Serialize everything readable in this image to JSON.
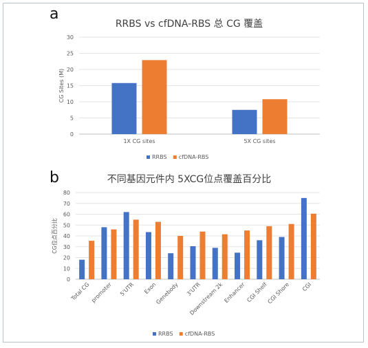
{
  "panels": [
    {
      "letter": "a"
    },
    {
      "letter": "b"
    }
  ],
  "chart_data": [
    {
      "type": "bar",
      "title": "RRBS vs cfDNA-RBS 总 CG 覆盖",
      "ylabel": "CG Sites (M)",
      "xlabel": "",
      "categories": [
        "1X CG sites",
        "5X CG sites"
      ],
      "ylim": [
        0,
        30
      ],
      "yticks": [
        0,
        5,
        10,
        15,
        20,
        25,
        30
      ],
      "grid": true,
      "legend": "bottom",
      "series": [
        {
          "name": "RRBS",
          "color": "#4472c4",
          "values": [
            15.8,
            7.5
          ]
        },
        {
          "name": "cfDNA-RBS",
          "color": "#ed7d31",
          "values": [
            22.9,
            10.8
          ]
        }
      ]
    },
    {
      "type": "bar",
      "title": "不同基因元件内 5XCG位点覆盖百分比",
      "ylabel": "CG位点百分比",
      "xlabel": "",
      "categories": [
        "Total CG",
        "promoter",
        "5'UTR",
        "Exon",
        "Genebody",
        "3'UTR",
        "Downstream 2k",
        "Enhancer",
        "CGI Shelf",
        "CGI Shore",
        "CGI"
      ],
      "ylim": [
        0,
        80
      ],
      "yticks": [
        0,
        10,
        20,
        30,
        40,
        50,
        60,
        70,
        80
      ],
      "grid": true,
      "legend": "bottom",
      "series": [
        {
          "name": "RRBS",
          "color": "#4472c4",
          "values": [
            18,
            48,
            62,
            43.5,
            24,
            30.5,
            29,
            24.5,
            36,
            39,
            75
          ]
        },
        {
          "name": "cfDNA-RBS",
          "color": "#ed7d31",
          "values": [
            35.5,
            46,
            55,
            53,
            40,
            44,
            41.5,
            45,
            49,
            51,
            60.5
          ]
        }
      ]
    }
  ]
}
